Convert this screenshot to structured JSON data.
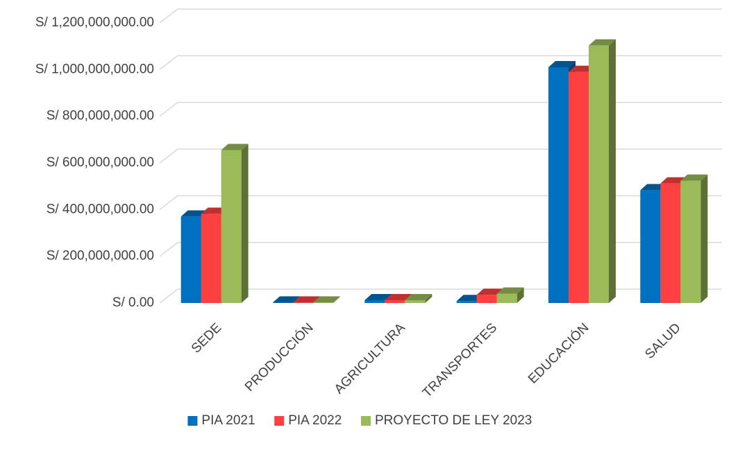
{
  "chart_data": {
    "type": "bar3d",
    "categories": [
      "SEDE",
      "PRODUCCIÓN",
      "AGRICULTURA",
      "TRANSPORTES",
      "EDUCACIÓN",
      "SALUD"
    ],
    "series": [
      {
        "name": "PIA 2021",
        "color": "#0070c0",
        "values": [
          370000000,
          2000000,
          12000000,
          8000000,
          1010000000,
          483000000
        ]
      },
      {
        "name": "PIA 2022",
        "color": "#ff4040",
        "values": [
          382000000,
          2000000,
          12000000,
          35000000,
          990000000,
          512000000
        ]
      },
      {
        "name": "PROYECTO DE LEY  2023",
        "color": "#9bbb59",
        "values": [
          655000000,
          2000000,
          12000000,
          40000000,
          1103000000,
          524000000
        ]
      }
    ],
    "ylim": [
      0,
      1200000000
    ],
    "yticks": [
      {
        "value": 0,
        "label": "S/ 0.00"
      },
      {
        "value": 200000000,
        "label": "S/ 200,000,000.00"
      },
      {
        "value": 400000000,
        "label": "S/ 400,000,000.00"
      },
      {
        "value": 600000000,
        "label": "S/ 600,000,000.00"
      },
      {
        "value": 800000000,
        "label": "S/ 800,000,000.00"
      },
      {
        "value": 1000000000,
        "label": "S/ 1,000,000,000.00"
      },
      {
        "value": 1200000000,
        "label": "S/ 1,200,000,000.00"
      }
    ],
    "grid": true,
    "legend": "bottom"
  }
}
